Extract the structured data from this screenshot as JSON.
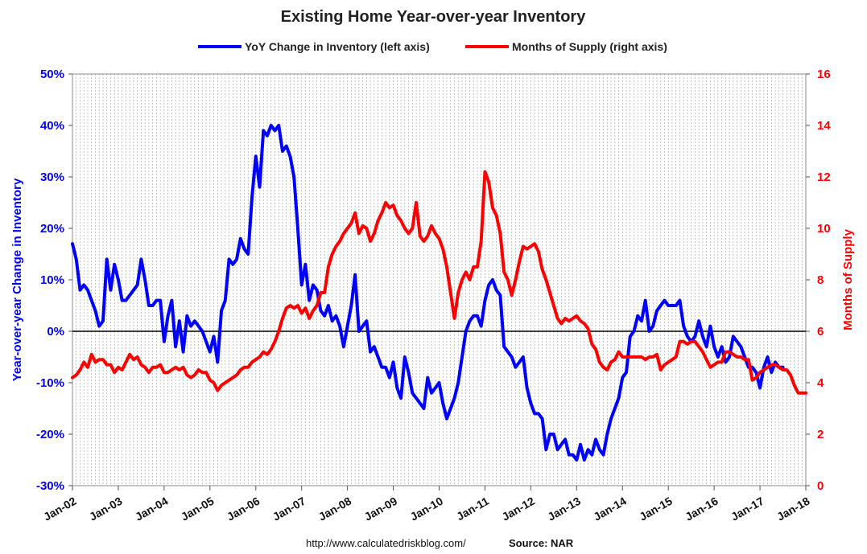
{
  "chart_data": {
    "type": "line",
    "title": "Existing Home Year-over-year Inventory",
    "footer": {
      "url": "http://www.calculatedriskblog.com/",
      "source": "Source:  NAR"
    },
    "x_ticks": [
      "Jan-02",
      "Jan-03",
      "Jan-04",
      "Jan-05",
      "Jan-06",
      "Jan-07",
      "Jan-08",
      "Jan-09",
      "Jan-10",
      "Jan-11",
      "Jan-12",
      "Jan-13",
      "Jan-14",
      "Jan-15",
      "Jan-16",
      "Jan-17",
      "Jan-18"
    ],
    "x_range": [
      "2002-01",
      "2018-01"
    ],
    "grid": "monthly vertical gridlines (dashed), no horizontal gridlines",
    "legend_position": "top-center",
    "left_axis": {
      "label": "Year-over-year Change in Inventory",
      "ticks": [
        "50%",
        "40%",
        "30%",
        "20%",
        "10%",
        "0%",
        "-10%",
        "-20%",
        "-30%"
      ],
      "ylim": [
        -30,
        50
      ],
      "color": "#0000ff"
    },
    "right_axis": {
      "label": "Months of Supply",
      "ticks": [
        "16",
        "14",
        "12",
        "10",
        "8",
        "6",
        "4",
        "2",
        "0"
      ],
      "ylim": [
        0,
        16
      ],
      "color": "#ff0000"
    },
    "series": [
      {
        "name": "YoY Change in Inventory (left axis)",
        "axis": "left",
        "color": "#0000ff",
        "start": "2002-01",
        "values": [
          17,
          14,
          8,
          9,
          8,
          6,
          4,
          1,
          2,
          14,
          8,
          13,
          10,
          6,
          6,
          7,
          8,
          9,
          14,
          10,
          5,
          5,
          6,
          6,
          -2,
          3,
          6,
          -3,
          2,
          -4,
          3,
          1,
          2,
          1,
          0,
          -2,
          -4,
          -1,
          -6,
          4,
          6,
          14,
          13,
          14,
          18,
          16,
          15,
          26,
          34,
          28,
          39,
          38,
          40,
          39,
          40,
          35,
          36,
          34,
          30,
          20,
          9,
          13,
          6,
          9,
          8,
          4,
          3,
          5,
          2,
          3,
          1,
          -3,
          1,
          5,
          11,
          0,
          1,
          2,
          -4,
          -3,
          -5,
          -7,
          -7,
          -9,
          -6,
          -11,
          -13,
          -5,
          -8,
          -12,
          -13,
          -14,
          -15,
          -9,
          -12,
          -11,
          -10,
          -14,
          -17,
          -15,
          -13,
          -10,
          -5,
          0,
          2,
          3,
          3,
          1,
          6,
          9,
          10,
          8,
          7,
          -3,
          -4,
          -5,
          -7,
          -6,
          -5,
          -11,
          -14,
          -16,
          -16,
          -17,
          -23,
          -20,
          -20,
          -23,
          -22,
          -21,
          -24,
          -24,
          -25,
          -22,
          -25,
          -23,
          -24,
          -21,
          -23,
          -24,
          -20,
          -17,
          -15,
          -13,
          -9,
          -8,
          -1,
          0,
          3,
          2,
          6,
          0,
          1,
          4,
          5,
          6,
          5,
          5,
          5,
          6,
          1,
          -1,
          -2,
          -1,
          2,
          -1,
          -3,
          1,
          -3,
          -5,
          -3,
          -6,
          -5,
          -1,
          -2,
          -3,
          -5,
          -7,
          -7,
          -8,
          -11,
          -7,
          -5,
          -8,
          -6,
          -7,
          -7
        ]
      },
      {
        "name": "Months of Supply (right axis)",
        "axis": "right",
        "color": "#ff0000",
        "start": "2002-01",
        "values": [
          4.2,
          4.3,
          4.5,
          4.8,
          4.6,
          5.1,
          4.8,
          4.9,
          4.9,
          4.7,
          4.7,
          4.4,
          4.6,
          4.5,
          4.8,
          5.1,
          4.9,
          5.0,
          4.7,
          4.6,
          4.4,
          4.6,
          4.6,
          4.7,
          4.4,
          4.4,
          4.5,
          4.6,
          4.5,
          4.6,
          4.3,
          4.2,
          4.3,
          4.5,
          4.4,
          4.4,
          4.1,
          4.0,
          3.7,
          3.9,
          4.0,
          4.1,
          4.2,
          4.3,
          4.5,
          4.6,
          4.6,
          4.8,
          4.9,
          5.0,
          5.2,
          5.1,
          5.3,
          5.6,
          6.0,
          6.5,
          6.9,
          7.0,
          6.9,
          7.0,
          6.7,
          6.9,
          6.5,
          6.8,
          7.0,
          7.5,
          7.5,
          8.5,
          9.0,
          9.3,
          9.5,
          9.8,
          10.0,
          10.2,
          10.6,
          9.8,
          10.1,
          10.0,
          9.5,
          9.8,
          10.3,
          10.6,
          11.0,
          10.8,
          10.9,
          10.5,
          10.3,
          10.0,
          9.8,
          10.0,
          11.0,
          9.7,
          9.5,
          9.7,
          10.1,
          9.8,
          9.6,
          9.2,
          8.5,
          7.5,
          6.5,
          7.5,
          8.0,
          8.3,
          8.0,
          8.5,
          8.5,
          9.5,
          12.2,
          11.8,
          10.8,
          10.5,
          9.8,
          8.3,
          8.0,
          7.4,
          8.0,
          8.7,
          9.3,
          9.2,
          9.3,
          9.4,
          9.1,
          8.4,
          8.0,
          7.5,
          7.0,
          6.5,
          6.3,
          6.5,
          6.4,
          6.5,
          6.6,
          6.4,
          6.3,
          6.1,
          5.5,
          5.3,
          4.8,
          4.6,
          4.5,
          4.8,
          4.9,
          5.2,
          5.0,
          5.0,
          5.0,
          5.0,
          5.0,
          5.0,
          4.9,
          5.0,
          5.0,
          5.1,
          4.5,
          4.7,
          4.8,
          4.9,
          5.0,
          5.6,
          5.6,
          5.5,
          5.6,
          5.6,
          5.4,
          5.2,
          4.9,
          4.6,
          4.7,
          4.8,
          4.8,
          5.2,
          5.2,
          5.1,
          5.0,
          5.0,
          4.9,
          4.9,
          4.1,
          4.2,
          4.4,
          4.5,
          4.6,
          4.7,
          4.7,
          4.6,
          4.5,
          4.5,
          4.3,
          3.9,
          3.6,
          3.6,
          3.6
        ]
      }
    ]
  }
}
